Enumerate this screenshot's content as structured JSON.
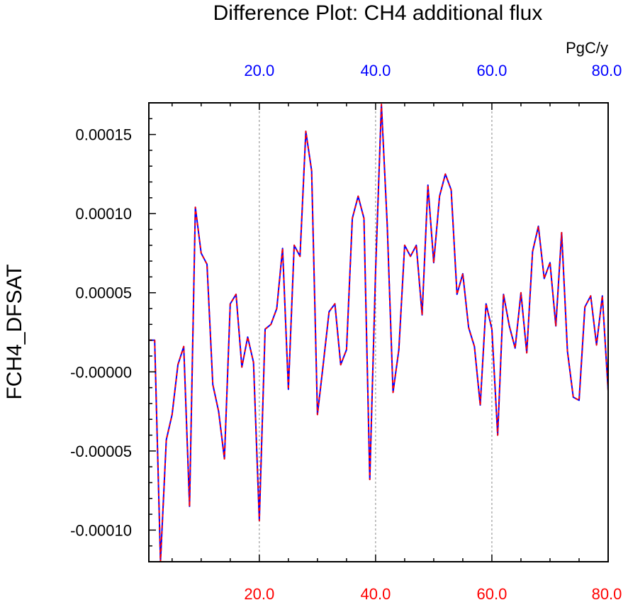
{
  "chart_data": {
    "type": "line",
    "title": "Difference Plot: CH4 additional flux",
    "units_label": "PgC/y",
    "ylabel": "FCH4_DFSAT",
    "xlabel": "",
    "xlim": [
      1,
      80
    ],
    "ylim": [
      -0.00012,
      0.00017
    ],
    "x_ticks": [
      20,
      40,
      60,
      80
    ],
    "x_tick_labels_top": [
      "20.0",
      "40.0",
      "60.0",
      "80.0"
    ],
    "x_tick_labels_bottom": [
      "20.0",
      "40.0",
      "60.0",
      "80.0"
    ],
    "y_ticks": [
      0.00015,
      0.0001,
      5e-05,
      0,
      -5e-05,
      -0.0001
    ],
    "y_tick_labels": [
      "0.00015",
      "0.00010",
      "0.00005",
      "-0.00000",
      "-0.00005",
      "-0.00010"
    ],
    "vertical_gridlines": [
      20,
      40,
      60
    ],
    "colors": {
      "top_axis_labels": "#0000ff",
      "bottom_axis_labels": "#ff0000",
      "series_a": "#0000ff",
      "series_b": "#ff0000",
      "gridline": "#888888"
    },
    "x": [
      1,
      2,
      3,
      4,
      5,
      6,
      7,
      8,
      9,
      10,
      11,
      12,
      13,
      14,
      15,
      16,
      17,
      18,
      19,
      20,
      21,
      22,
      23,
      24,
      25,
      26,
      27,
      28,
      29,
      30,
      31,
      32,
      33,
      34,
      35,
      36,
      37,
      38,
      39,
      40,
      41,
      42,
      43,
      44,
      45,
      46,
      47,
      48,
      49,
      50,
      51,
      52,
      53,
      54,
      55,
      56,
      57,
      58,
      59,
      60,
      61,
      62,
      63,
      64,
      65,
      66,
      67,
      68,
      69,
      70,
      71,
      72,
      73,
      74,
      75,
      76,
      77,
      78,
      79,
      80
    ],
    "series": [
      {
        "values": [
          2e-05,
          2e-05,
          -0.00012,
          -4.3e-05,
          -2.7e-05,
          4.5e-06,
          1.6e-05,
          -8.5e-05,
          0.000104,
          7.5e-05,
          6.8e-05,
          -8e-06,
          -2.5e-05,
          -5.5e-05,
          4.3e-05,
          4.9e-05,
          3e-06,
          2.2e-05,
          6e-06,
          -9.4e-05,
          2.7e-05,
          3e-05,
          4e-05,
          7.8e-05,
          -1.1e-05,
          8e-05,
          7.3e-05,
          0.000152,
          0.000127,
          -2.7e-05,
          5e-06,
          3.8e-05,
          4.3e-05,
          4.5e-06,
          1.4e-05,
          9.7e-05,
          0.000111,
          9.7e-05,
          -6.8e-05,
          6.4e-05,
          0.000169,
          9.3e-05,
          -1.3e-05,
          1.4e-05,
          8e-05,
          7.3e-05,
          8e-05,
          3.6e-05,
          0.000118,
          6.9e-05,
          0.000111,
          0.000125,
          0.000115,
          4.9e-05,
          6.2e-05,
          2.8e-05,
          1.6e-05,
          -2.1e-05,
          4.3e-05,
          2.7e-05,
          -4e-05,
          4.9e-05,
          2.9e-05,
          1.5e-05,
          5e-05,
          1.2e-05,
          7.6e-05,
          9.2e-05,
          5.9e-05,
          6.9e-05,
          2.9e-05,
          8.8e-05,
          1.3e-05,
          -1.6e-05,
          -1.8e-05,
          4.1e-05,
          4.8e-05,
          1.7e-05,
          4.8e-05,
          -1.2e-05
        ]
      },
      {
        "values": [
          2e-05,
          2e-05,
          -0.00012,
          -4.3e-05,
          -2.7e-05,
          4.5e-06,
          1.6e-05,
          -8.5e-05,
          0.000104,
          7.5e-05,
          6.8e-05,
          -8e-06,
          -2.5e-05,
          -5.5e-05,
          4.3e-05,
          4.9e-05,
          3e-06,
          2.2e-05,
          6e-06,
          -9.4e-05,
          2.7e-05,
          3e-05,
          4e-05,
          7.8e-05,
          -1.1e-05,
          8e-05,
          7.3e-05,
          0.000152,
          0.000127,
          -2.7e-05,
          5e-06,
          3.8e-05,
          4.3e-05,
          4.5e-06,
          1.4e-05,
          9.7e-05,
          0.000111,
          9.7e-05,
          -6.8e-05,
          6.4e-05,
          0.000169,
          9.3e-05,
          -1.3e-05,
          1.4e-05,
          8e-05,
          7.3e-05,
          8e-05,
          3.6e-05,
          0.000118,
          6.9e-05,
          0.000111,
          0.000125,
          0.000115,
          4.9e-05,
          6.2e-05,
          2.8e-05,
          1.6e-05,
          -2.1e-05,
          4.3e-05,
          2.7e-05,
          -4e-05,
          4.9e-05,
          2.9e-05,
          1.5e-05,
          5e-05,
          1.2e-05,
          7.6e-05,
          9.2e-05,
          5.9e-05,
          6.9e-05,
          2.9e-05,
          8.8e-05,
          1.3e-05,
          -1.6e-05,
          -1.8e-05,
          4.1e-05,
          4.8e-05,
          1.7e-05,
          4.8e-05,
          -1.2e-05
        ]
      }
    ]
  }
}
